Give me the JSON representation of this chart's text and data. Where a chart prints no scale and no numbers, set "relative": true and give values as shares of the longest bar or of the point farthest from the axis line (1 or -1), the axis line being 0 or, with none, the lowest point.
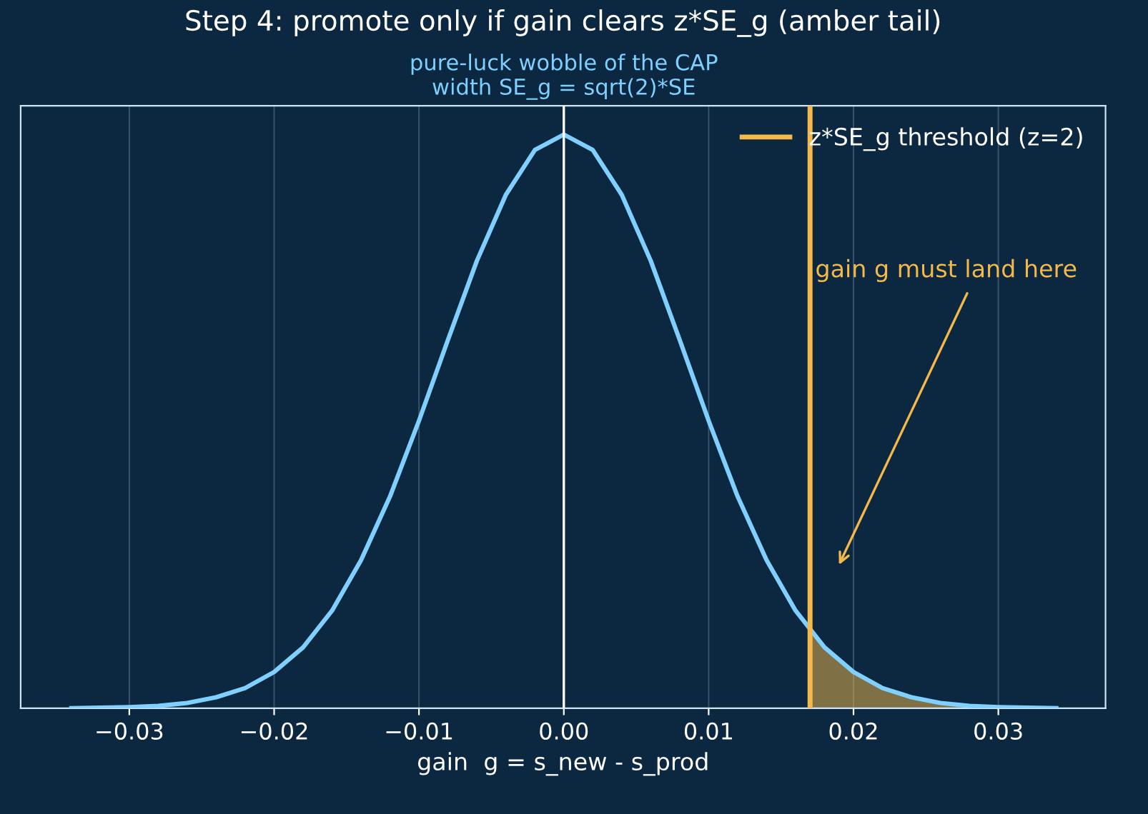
{
  "chart_data": {
    "type": "line",
    "title": "Step 4: promote only if gain clears z*SE_g (amber tail)",
    "xlabel": "gain  g = s_new - s_prod",
    "relative": true,
    "series": [
      {
        "color": "#7fd0ff",
        "x": [
          -0.034,
          -0.032,
          -0.03,
          -0.028,
          -0.026,
          -0.024,
          -0.022,
          -0.02,
          -0.018,
          -0.016,
          -0.014,
          -0.012,
          -0.01,
          -0.008,
          -0.006,
          -0.004,
          -0.002,
          0,
          0.002,
          0.004,
          0.006,
          0.008,
          0.01,
          0.012,
          0.014,
          0.016,
          0.018,
          0.02,
          0.022,
          0.024,
          0.026,
          0.028,
          0.03,
          0.032,
          0.034
        ],
        "values": [
          0,
          0.001,
          0.002,
          0.004,
          0.009,
          0.019,
          0.035,
          0.063,
          0.106,
          0.17,
          0.258,
          0.369,
          0.501,
          0.642,
          0.78,
          0.895,
          0.973,
          1,
          0.973,
          0.895,
          0.78,
          0.642,
          0.501,
          0.369,
          0.258,
          0.17,
          0.106,
          0.063,
          0.035,
          0.019,
          0.009,
          0.004,
          0.002,
          0.001,
          0
        ]
      },
      {
        "type": "area",
        "color": "#f5b84a",
        "x": [
          0.017,
          0.018,
          0.02,
          0.022,
          0.024,
          0.026,
          0.028,
          0.03,
          0.032,
          0.034
        ],
        "values": [
          0.135,
          0.106,
          0.063,
          0.035,
          0.019,
          0.009,
          0.004,
          0.002,
          0.001,
          0
        ]
      }
    ],
    "xlim": [
      -0.0375,
      0.0374
    ],
    "xticks": [
      {
        "value": -0.03,
        "label": "−0.03"
      },
      {
        "value": -0.02,
        "label": "−0.02"
      },
      {
        "value": -0.01,
        "label": "−0.01"
      },
      {
        "value": 0,
        "label": "0.00"
      },
      {
        "value": 0.01,
        "label": "0.01"
      },
      {
        "value": 0.02,
        "label": "0.02"
      },
      {
        "value": 0.03,
        "label": "0.03"
      }
    ],
    "ref_lines": [
      {
        "axis": "x",
        "value": 0,
        "color": "#ffffff"
      },
      {
        "axis": "x",
        "value": 0.017,
        "label": "z*SE_g threshold (z=2)",
        "color": "#f5b84a"
      }
    ],
    "annotations": [
      "pure-luck wobble of the CAP\nwidth SE_g = sqrt(2)*SE",
      "gain g must land here"
    ],
    "grid": "x",
    "legend": "top right",
    "tick_labels": "x"
  }
}
